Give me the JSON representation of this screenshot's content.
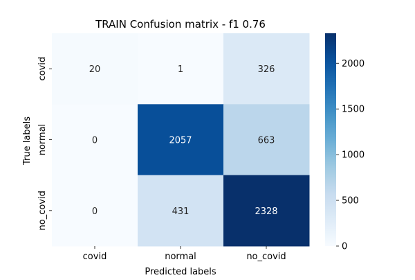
{
  "chart_data": {
    "type": "heatmap",
    "title": "TRAIN Confusion matrix - f1 0.76",
    "xlabel": "Predicted labels",
    "ylabel": "True labels",
    "x_categories": [
      "covid",
      "normal",
      "no_covid"
    ],
    "y_categories": [
      "covid",
      "normal",
      "no_covid"
    ],
    "values": [
      [
        20,
        1,
        326
      ],
      [
        0,
        2057,
        663
      ],
      [
        0,
        431,
        2328
      ]
    ],
    "colormap": "Blues",
    "colorbar": {
      "range": [
        0,
        2328
      ],
      "ticks": [
        0,
        500,
        1000,
        1500,
        2000
      ]
    }
  }
}
